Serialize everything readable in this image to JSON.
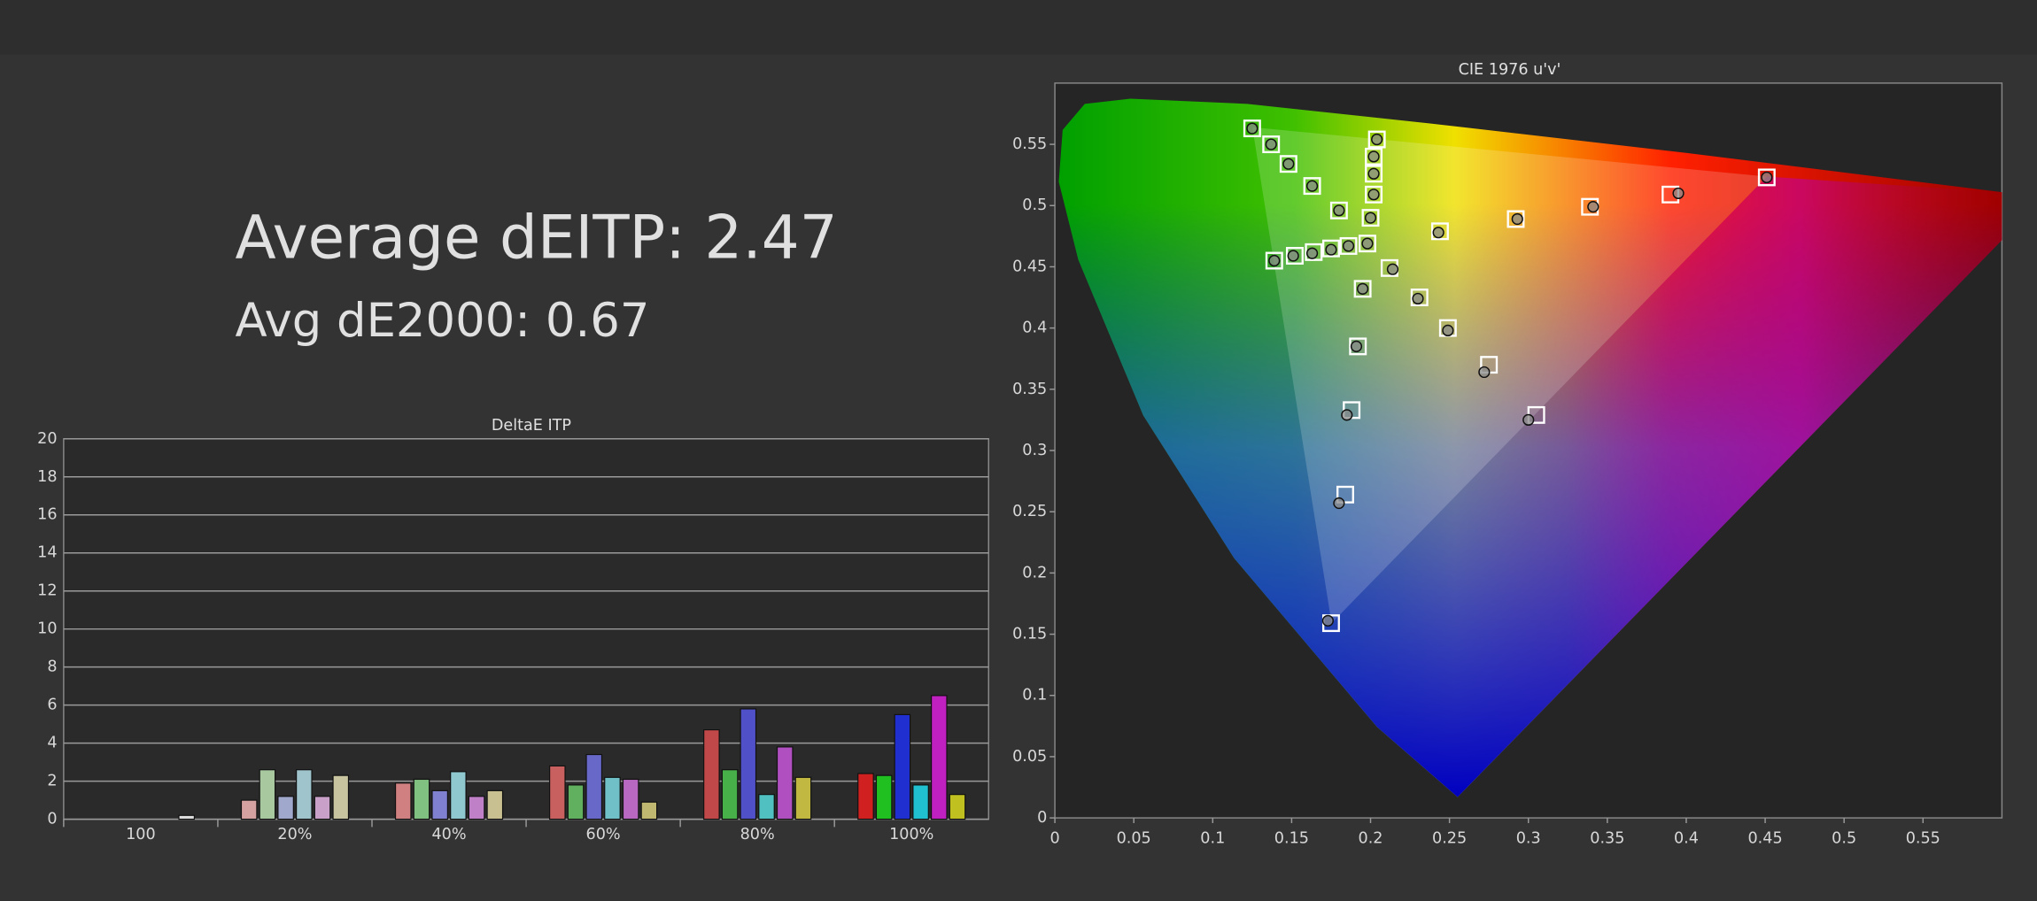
{
  "chart_data": [
    {
      "type": "bar",
      "title": "DeltaE ITP",
      "annotations": [
        "Average dEITP: 2.47",
        "Avg dE2000: 0.67"
      ],
      "categories": [
        "100",
        "20%",
        "40%",
        "60%",
        "80%",
        "100%"
      ],
      "series": [
        {
          "colors": [
            "#dddddd",
            "#d4a0a0",
            "#d08080",
            "#c86060",
            "#c04848",
            "#d02020"
          ],
          "values": [
            0,
            1.0,
            1.9,
            2.8,
            4.7,
            2.4
          ]
        },
        {
          "colors": [
            "#dddddd",
            "#a8c8a0",
            "#80c080",
            "#60b060",
            "#48b048",
            "#20c020"
          ],
          "values": [
            0,
            2.6,
            2.1,
            1.8,
            2.6,
            2.3
          ]
        },
        {
          "colors": [
            "#dddddd",
            "#a0a8cc",
            "#8080d0",
            "#6868c8",
            "#5050c8",
            "#2030d0"
          ],
          "values": [
            0,
            1.2,
            1.5,
            3.4,
            5.8,
            5.5
          ]
        },
        {
          "colors": [
            "#dddddd",
            "#a0c4cc",
            "#90c8d0",
            "#70c0c8",
            "#50c0c0",
            "#20c0d0"
          ],
          "values": [
            0,
            2.6,
            2.5,
            2.2,
            1.3,
            1.8
          ]
        },
        {
          "colors": [
            "#dddddd",
            "#c8a0c8",
            "#c080c8",
            "#b868c0",
            "#b050c0",
            "#c020c0"
          ],
          "values": [
            0,
            1.2,
            1.2,
            2.1,
            3.8,
            6.5
          ]
        },
        {
          "colors": [
            "#dddddd",
            "#c8c4a0",
            "#c8c090",
            "#c0b870",
            "#c0b840",
            "#c0c020"
          ],
          "values": [
            0.2,
            2.3,
            1.5,
            0.9,
            2.2,
            1.3
          ]
        }
      ],
      "ylim": [
        0,
        20
      ],
      "yticks": [
        0,
        2,
        4,
        6,
        8,
        10,
        12,
        14,
        16,
        18,
        20
      ],
      "grid": true
    },
    {
      "type": "scatter",
      "title": "CIE 1976 u'v'",
      "xlim": [
        0,
        0.6
      ],
      "ylim": [
        0,
        0.6
      ],
      "xticks": [
        0,
        0.05,
        0.1,
        0.15,
        0.2,
        0.25,
        0.3,
        0.35,
        0.4,
        0.45,
        0.5,
        0.55
      ],
      "yticks": [
        0,
        0.05,
        0.1,
        0.15,
        0.2,
        0.25,
        0.3,
        0.35,
        0.4,
        0.45,
        0.5,
        0.55
      ],
      "grid": false,
      "series": [
        {
          "marker": "square",
          "color": "#ffffff",
          "x": [
            0.125,
            0.137,
            0.148,
            0.163,
            0.18,
            0.204,
            0.202,
            0.202,
            0.202,
            0.2,
            0.139,
            0.152,
            0.164,
            0.175,
            0.186,
            0.198,
            0.451,
            0.39,
            0.339,
            0.292,
            0.244,
            0.305,
            0.275,
            0.249,
            0.231,
            0.212,
            0.175,
            0.184,
            0.188,
            0.192,
            0.195
          ],
          "values": [
            0.563,
            0.55,
            0.534,
            0.516,
            0.496,
            0.554,
            0.54,
            0.526,
            0.509,
            0.49,
            0.455,
            0.459,
            0.462,
            0.465,
            0.467,
            0.469,
            0.523,
            0.509,
            0.499,
            0.489,
            0.479,
            0.329,
            0.37,
            0.4,
            0.425,
            0.449,
            0.159,
            0.264,
            0.333,
            0.385,
            0.432
          ]
        },
        {
          "marker": "circle",
          "color": "#8a8a8a",
          "x": [
            0.125,
            0.137,
            0.148,
            0.163,
            0.18,
            0.204,
            0.202,
            0.202,
            0.202,
            0.2,
            0.139,
            0.151,
            0.163,
            0.175,
            0.186,
            0.198,
            0.451,
            0.395,
            0.341,
            0.293,
            0.243,
            0.3,
            0.272,
            0.249,
            0.23,
            0.214,
            0.173,
            0.18,
            0.185,
            0.191,
            0.195
          ],
          "values": [
            0.563,
            0.55,
            0.534,
            0.516,
            0.496,
            0.554,
            0.54,
            0.526,
            0.509,
            0.49,
            0.455,
            0.459,
            0.461,
            0.464,
            0.467,
            0.469,
            0.523,
            0.51,
            0.499,
            0.489,
            0.478,
            0.325,
            0.364,
            0.398,
            0.424,
            0.448,
            0.161,
            0.257,
            0.329,
            0.385,
            0.432
          ]
        }
      ]
    }
  ]
}
